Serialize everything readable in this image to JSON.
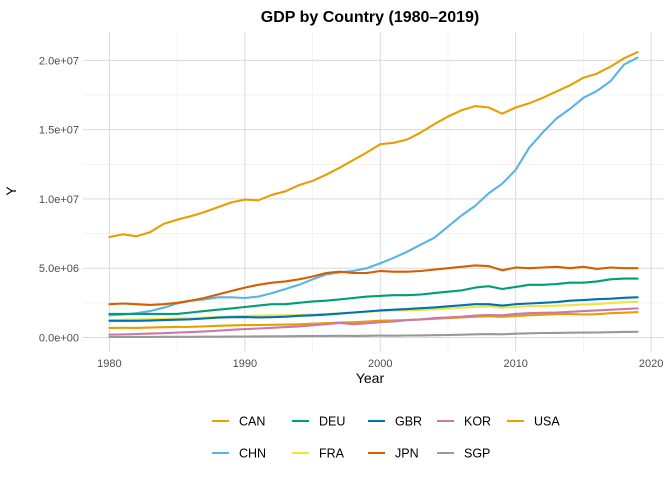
{
  "chart_data": {
    "type": "line",
    "title": "GDP by Country (1980–2019)",
    "xlabel": "Year",
    "ylabel": "Y",
    "xlim": [
      1980,
      2019
    ],
    "ylim": [
      0,
      21000000
    ],
    "x_ticks": [
      1980,
      1990,
      2000,
      2010,
      2020
    ],
    "x_tick_labels": [
      "1980",
      "1990",
      "2000",
      "2010",
      "2020"
    ],
    "y_ticks": [
      0,
      5000000,
      10000000,
      15000000,
      20000000
    ],
    "y_tick_labels": [
      "0.0e+00",
      "5.0e+06",
      "1.0e+07",
      "1.5e+07",
      "2.0e+07"
    ],
    "grid": true,
    "legend_position": "bottom",
    "x": [
      1980,
      1981,
      1982,
      1983,
      1984,
      1985,
      1986,
      1987,
      1988,
      1989,
      1990,
      1991,
      1992,
      1993,
      1994,
      1995,
      1996,
      1997,
      1998,
      1999,
      2000,
      2001,
      2002,
      2003,
      2004,
      2005,
      2006,
      2007,
      2008,
      2009,
      2010,
      2011,
      2012,
      2013,
      2014,
      2015,
      2016,
      2017,
      2018,
      2019
    ],
    "series": [
      {
        "name": "CAN",
        "color": "#E69F00",
        "values": [
          690000,
          700000,
          690000,
          710000,
          740000,
          760000,
          770000,
          800000,
          840000,
          870000,
          890000,
          900000,
          910000,
          930000,
          950000,
          990000,
          1030000,
          1080000,
          1100000,
          1150000,
          1210000,
          1230000,
          1260000,
          1300000,
          1350000,
          1400000,
          1450000,
          1500000,
          1530000,
          1490000,
          1550000,
          1600000,
          1640000,
          1680000,
          1700000,
          1660000,
          1680000,
          1750000,
          1790000,
          1830000
        ]
      },
      {
        "name": "CHN",
        "color": "#56B4E9",
        "values": [
          1600000,
          1650000,
          1750000,
          1900000,
          2150000,
          2450000,
          2650000,
          2750000,
          2900000,
          2900000,
          2850000,
          2950000,
          3200000,
          3500000,
          3800000,
          4200000,
          4550000,
          4700000,
          4800000,
          5000000,
          5350000,
          5750000,
          6200000,
          6700000,
          7200000,
          8000000,
          8800000,
          9500000,
          10400000,
          11100000,
          12100000,
          13700000,
          14800000,
          15800000,
          16500000,
          17300000,
          17800000,
          18500000,
          19700000,
          20200000
        ]
      },
      {
        "name": "DEU",
        "color": "#009E73",
        "values": [
          1700000,
          1700000,
          1700000,
          1700000,
          1700000,
          1700000,
          1800000,
          1900000,
          2000000,
          2100000,
          2200000,
          2300000,
          2400000,
          2400000,
          2500000,
          2600000,
          2650000,
          2750000,
          2850000,
          2950000,
          3000000,
          3050000,
          3050000,
          3100000,
          3200000,
          3300000,
          3400000,
          3600000,
          3700000,
          3500000,
          3650000,
          3800000,
          3800000,
          3850000,
          3950000,
          3950000,
          4050000,
          4200000,
          4250000,
          4250000
        ]
      },
      {
        "name": "FRA",
        "color": "#F0E442",
        "values": [
          1250000,
          1280000,
          1300000,
          1320000,
          1340000,
          1370000,
          1400000,
          1430000,
          1480000,
          1520000,
          1560000,
          1580000,
          1600000,
          1600000,
          1630000,
          1660000,
          1700000,
          1740000,
          1790000,
          1850000,
          1900000,
          1940000,
          1960000,
          1980000,
          2030000,
          2080000,
          2140000,
          2200000,
          2250000,
          2150000,
          2200000,
          2260000,
          2270000,
          2290000,
          2330000,
          2370000,
          2410000,
          2480000,
          2540000,
          2580000
        ]
      },
      {
        "name": "GBR",
        "color": "#0072B2",
        "values": [
          1200000,
          1200000,
          1200000,
          1220000,
          1250000,
          1280000,
          1310000,
          1370000,
          1430000,
          1460000,
          1470000,
          1450000,
          1460000,
          1500000,
          1560000,
          1600000,
          1650000,
          1720000,
          1800000,
          1870000,
          1950000,
          2000000,
          2050000,
          2110000,
          2170000,
          2250000,
          2320000,
          2400000,
          2400000,
          2300000,
          2400000,
          2450000,
          2500000,
          2550000,
          2650000,
          2700000,
          2760000,
          2800000,
          2860000,
          2900000
        ]
      },
      {
        "name": "JPN",
        "color": "#D55E00",
        "values": [
          2400000,
          2450000,
          2400000,
          2350000,
          2400000,
          2500000,
          2650000,
          2850000,
          3100000,
          3350000,
          3600000,
          3800000,
          3950000,
          4050000,
          4200000,
          4400000,
          4650000,
          4750000,
          4650000,
          4650000,
          4800000,
          4750000,
          4750000,
          4800000,
          4900000,
          5000000,
          5100000,
          5200000,
          5150000,
          4850000,
          5050000,
          5000000,
          5050000,
          5100000,
          5000000,
          5100000,
          4950000,
          5050000,
          5000000,
          5000000
        ]
      },
      {
        "name": "KOR",
        "color": "#CC79A7",
        "values": [
          200000,
          220000,
          250000,
          280000,
          310000,
          350000,
          390000,
          440000,
          490000,
          550000,
          600000,
          650000,
          700000,
          750000,
          800000,
          880000,
          960000,
          1050000,
          960000,
          1020000,
          1100000,
          1150000,
          1250000,
          1300000,
          1400000,
          1450000,
          1500000,
          1580000,
          1620000,
          1600000,
          1700000,
          1750000,
          1780000,
          1800000,
          1850000,
          1900000,
          1950000,
          2000000,
          2050000,
          2100000
        ]
      },
      {
        "name": "SGP",
        "color": "#999999",
        "values": [
          30000,
          35000,
          38000,
          42000,
          45000,
          45000,
          47000,
          52000,
          58000,
          63000,
          70000,
          75000,
          80000,
          86000,
          95000,
          105000,
          112000,
          118000,
          115000,
          120000,
          135000,
          130000,
          140000,
          145000,
          160000,
          180000,
          200000,
          230000,
          240000,
          230000,
          270000,
          300000,
          320000,
          330000,
          345000,
          350000,
          360000,
          380000,
          400000,
          410000
        ]
      },
      {
        "name": "USA",
        "color": "#E69F00",
        "values": [
          7250000,
          7450000,
          7300000,
          7600000,
          8200000,
          8500000,
          8750000,
          9050000,
          9400000,
          9750000,
          9950000,
          9900000,
          10300000,
          10550000,
          11000000,
          11300000,
          11750000,
          12250000,
          12800000,
          13350000,
          13950000,
          14050000,
          14300000,
          14800000,
          15400000,
          15950000,
          16400000,
          16700000,
          16600000,
          16150000,
          16600000,
          16900000,
          17300000,
          17750000,
          18200000,
          18750000,
          19050000,
          19550000,
          20150000,
          20600000
        ]
      }
    ],
    "legend_rows": [
      [
        "CAN",
        "DEU",
        "GBR",
        "KOR",
        "USA"
      ],
      [
        "CHN",
        "FRA",
        "JPN",
        "SGP"
      ]
    ]
  }
}
